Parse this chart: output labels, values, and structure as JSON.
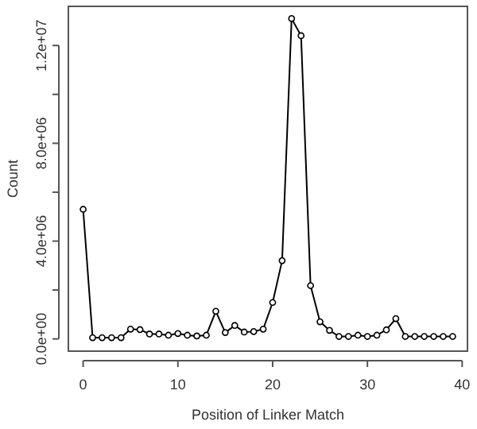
{
  "chart_data": {
    "type": "line",
    "xlabel": "Position of Linker Match",
    "ylabel": "Count",
    "x": [
      0,
      1,
      2,
      3,
      4,
      5,
      6,
      7,
      8,
      9,
      10,
      11,
      12,
      13,
      14,
      15,
      16,
      17,
      18,
      19,
      20,
      21,
      22,
      23,
      24,
      25,
      26,
      27,
      28,
      29,
      30,
      31,
      32,
      33,
      34,
      35,
      36,
      37,
      38,
      39
    ],
    "values": [
      5300000,
      50000,
      50000,
      50000,
      50000,
      400000,
      380000,
      200000,
      200000,
      150000,
      220000,
      150000,
      120000,
      150000,
      1130000,
      260000,
      550000,
      280000,
      300000,
      400000,
      1490000,
      3200000,
      13100000,
      12400000,
      2180000,
      700000,
      350000,
      100000,
      100000,
      150000,
      100000,
      150000,
      370000,
      830000,
      100000,
      100000,
      100000,
      100000,
      100000,
      100000
    ],
    "color": "#000000",
    "marker": "circle",
    "line_style": "solid",
    "grid": false,
    "xlim": [
      -1.56,
      40.56
    ],
    "xticks": [
      0,
      10,
      20,
      30,
      40
    ],
    "ylim": [
      -500000,
      13600000
    ],
    "yticks": [
      {
        "value": 0,
        "label": "0.0e+00"
      },
      {
        "value": 2000000,
        "label": null
      },
      {
        "value": 4000000,
        "label": "4.0e+06"
      },
      {
        "value": 6000000,
        "label": null
      },
      {
        "value": 8000000,
        "label": "8.0e+06"
      },
      {
        "value": 10000000,
        "label": null
      },
      {
        "value": 12000000,
        "label": "1.2e+07"
      }
    ]
  }
}
